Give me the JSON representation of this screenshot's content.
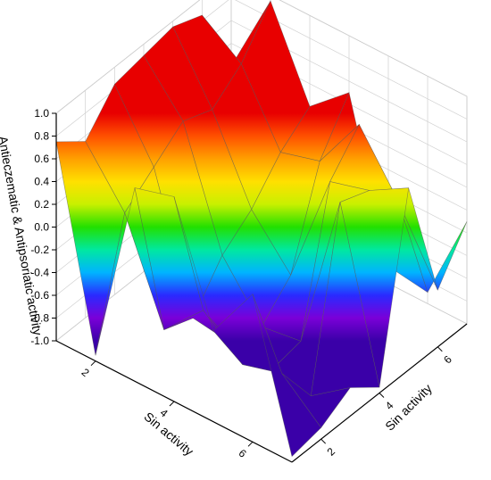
{
  "chart_data": {
    "type": "surface3d",
    "title": "",
    "zlabel": "Antieczematic & Antipsoriatic activity",
    "xlabel": "Sin activity",
    "ylabel": "Sin activity",
    "zlim": [
      -1.0,
      1.0
    ],
    "z_ticks": [
      "1.0",
      "0.8",
      "0.6",
      "0.4",
      "0.2",
      "0.0",
      "-0.2",
      "-0.4",
      "-0.6",
      "-0.8",
      "-1.0"
    ],
    "x_ticks": [
      "2",
      "4",
      "6"
    ],
    "y_ticks": [
      "2",
      "4",
      "6"
    ],
    "colormap": [
      "#3a00a8",
      "#7a00d8",
      "#2a2aff",
      "#00b4ff",
      "#00e8a0",
      "#22e000",
      "#c8f000",
      "#ffe000",
      "#ffa000",
      "#ff5000",
      "#e80000"
    ],
    "grid": true,
    "x": [
      1,
      2,
      3,
      4,
      5,
      6,
      7
    ],
    "y": [
      1,
      2,
      3,
      4,
      5,
      6,
      7
    ],
    "z": [
      [
        0.75,
        0.55,
        0.85,
        0.9,
        0.95,
        0.85,
        0.2
      ],
      [
        -0.95,
        0.1,
        0.3,
        0.5,
        0.4,
        0.6,
        0.95
      ],
      [
        0.7,
        -0.75,
        -0.85,
        -0.5,
        -0.3,
        0.0,
        0.2
      ],
      [
        0.8,
        -0.4,
        -0.9,
        -0.95,
        -0.7,
        0.1,
        0.5
      ],
      [
        -0.2,
        -0.7,
        -0.95,
        -0.9,
        0.3,
        0.6,
        -0.85
      ],
      [
        0.3,
        -0.6,
        -1.0,
        0.5,
        0.4,
        0.1,
        -0.9
      ],
      [
        -0.95,
        -0.9,
        -0.75,
        -0.95,
        0.6,
        -0.5,
        -0.1
      ]
    ]
  }
}
